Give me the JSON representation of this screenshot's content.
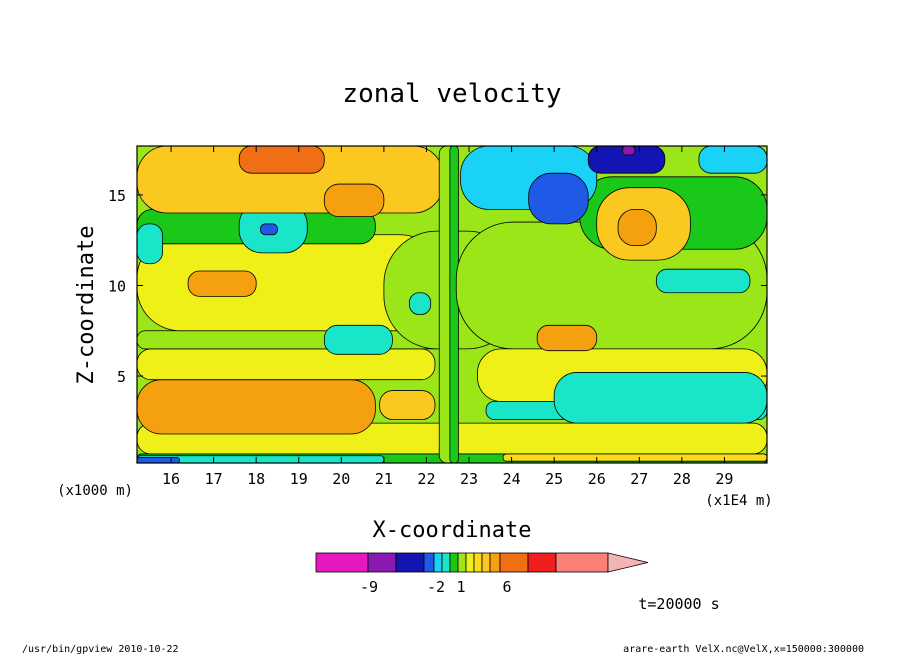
{
  "chart_data": {
    "type": "heatmap",
    "title": "zonal velocity",
    "xlabel": "X-coordinate",
    "ylabel": "Z-coordinate",
    "x_unit": "(x1E4 m)",
    "y_unit": "(x1000 m)",
    "xlim": [
      15.2,
      30.0
    ],
    "ylim": [
      0.2,
      17.7
    ],
    "x_ticks": [
      "16",
      "17",
      "18",
      "19",
      "20",
      "21",
      "22",
      "23",
      "24",
      "25",
      "26",
      "27",
      "28",
      "29"
    ],
    "y_ticks": [
      "5",
      "10",
      "15"
    ],
    "timestamp": "t=20000 s",
    "colorbar": {
      "tick_labels": [
        "-9",
        "-2",
        "1",
        "6"
      ],
      "colors": [
        "#e619c0",
        "#8a19b4",
        "#1414b4",
        "#1e5ae6",
        "#19d2f5",
        "#19e6c8",
        "#19c819",
        "#9be619",
        "#f0f019",
        "#fadc19",
        "#fac81e",
        "#f5a00f",
        "#f06e14",
        "#f01e1e",
        "#fa8078",
        "#f5b4b4"
      ]
    },
    "footer": {
      "left": "/usr/bin/gpview  2010-10-22",
      "right": "arare-earth_VelX.nc@VelX,x=150000:300000"
    },
    "levels": {
      "-9": "#e619c0",
      "-7": "#8a19b4",
      "-5": "#1414b4",
      "-3": "#1e5ae6",
      "-2": "#19d2f5",
      "-1": "#19e6c8",
      "0": "#19c819",
      "0.5": "#9be619",
      "1": "#f0f019",
      "2": "#fadc19",
      "3": "#fac81e",
      "4": "#f5a00f",
      "5": "#f06e14",
      "6": "#f01e1e"
    },
    "background_level": "0.5",
    "fields": [
      {
        "level": "1",
        "x": [
          15.2,
          30.0
        ],
        "z": [
          0.7,
          2.4
        ]
      },
      {
        "level": "0",
        "x": [
          15.2,
          30.0
        ],
        "z": [
          0.2,
          0.7
        ]
      },
      {
        "level": "-1",
        "x": [
          15.2,
          21.0
        ],
        "z": [
          0.2,
          0.6
        ]
      },
      {
        "level": "-3",
        "x": [
          15.2,
          16.2
        ],
        "z": [
          0.2,
          0.5
        ]
      },
      {
        "level": "2",
        "x": [
          23.8,
          30.0
        ],
        "z": [
          0.3,
          0.7
        ]
      },
      {
        "level": "4",
        "x": [
          15.2,
          20.8
        ],
        "z": [
          1.8,
          4.8
        ]
      },
      {
        "level": "1",
        "x": [
          15.2,
          22.2
        ],
        "z": [
          4.8,
          6.5
        ]
      },
      {
        "level": "0.5",
        "x": [
          15.2,
          22.4
        ],
        "z": [
          6.5,
          7.5
        ]
      },
      {
        "level": "1",
        "x": [
          15.2,
          22.4
        ],
        "z": [
          7.5,
          12.8
        ]
      },
      {
        "level": "0",
        "x": [
          15.2,
          20.8
        ],
        "z": [
          12.3,
          14.2
        ]
      },
      {
        "level": "-1",
        "x": [
          17.6,
          19.2
        ],
        "z": [
          11.8,
          14.6
        ]
      },
      {
        "level": "-3",
        "x": [
          18.1,
          18.5
        ],
        "z": [
          12.8,
          13.4
        ]
      },
      {
        "level": "3",
        "x": [
          15.2,
          22.4
        ],
        "z": [
          14.0,
          17.7
        ]
      },
      {
        "level": "4",
        "x": [
          19.6,
          21.0
        ],
        "z": [
          13.8,
          15.6
        ]
      },
      {
        "level": "5",
        "x": [
          17.6,
          19.6
        ],
        "z": [
          16.2,
          17.7
        ]
      },
      {
        "level": "-1",
        "x": [
          15.2,
          15.8
        ],
        "z": [
          11.2,
          13.4
        ]
      },
      {
        "level": "4",
        "x": [
          16.4,
          18.0
        ],
        "z": [
          9.4,
          10.8
        ]
      },
      {
        "level": "-1",
        "x": [
          19.6,
          21.2
        ],
        "z": [
          6.2,
          7.8
        ]
      },
      {
        "level": "3",
        "x": [
          20.9,
          22.2
        ],
        "z": [
          2.6,
          4.2
        ]
      },
      {
        "level": "0.5",
        "x": [
          21.0,
          24.2
        ],
        "z": [
          6.5,
          13.0
        ]
      },
      {
        "level": "0.5",
        "x": [
          22.3,
          22.7
        ],
        "z": [
          0.2,
          17.7
        ]
      },
      {
        "level": "0",
        "x": [
          22.55,
          22.75
        ],
        "z": [
          0.2,
          17.7
        ]
      },
      {
        "level": "-1",
        "x": [
          21.6,
          22.1
        ],
        "z": [
          8.4,
          9.6
        ]
      },
      {
        "level": "3",
        "x": [
          23.3,
          23.9
        ],
        "z": [
          8.4,
          9.7
        ]
      },
      {
        "level": "0.5",
        "x": [
          22.7,
          30.0
        ],
        "z": [
          6.5,
          13.5
        ]
      },
      {
        "level": "1",
        "x": [
          23.2,
          30.0
        ],
        "z": [
          3.6,
          6.5
        ]
      },
      {
        "level": "4",
        "x": [
          24.6,
          26.0
        ],
        "z": [
          6.4,
          7.8
        ]
      },
      {
        "level": "-1",
        "x": [
          23.4,
          30.0
        ],
        "z": [
          2.6,
          3.6
        ]
      },
      {
        "level": "-1",
        "x": [
          25.0,
          30.0
        ],
        "z": [
          2.4,
          5.2
        ]
      },
      {
        "level": "-1",
        "x": [
          27.4,
          29.6
        ],
        "z": [
          9.6,
          10.9
        ]
      },
      {
        "level": "0",
        "x": [
          25.6,
          30.0
        ],
        "z": [
          12.0,
          16.0
        ]
      },
      {
        "level": "3",
        "x": [
          26.0,
          28.2
        ],
        "z": [
          11.4,
          15.4
        ]
      },
      {
        "level": "4",
        "x": [
          26.5,
          27.4
        ],
        "z": [
          12.2,
          14.2
        ]
      },
      {
        "level": "-2",
        "x": [
          22.8,
          26.0
        ],
        "z": [
          14.2,
          17.7
        ]
      },
      {
        "level": "-3",
        "x": [
          24.4,
          25.8
        ],
        "z": [
          13.4,
          16.2
        ]
      },
      {
        "level": "-5",
        "x": [
          25.8,
          27.6
        ],
        "z": [
          16.2,
          17.7
        ]
      },
      {
        "level": "-7",
        "x": [
          26.6,
          26.9
        ],
        "z": [
          17.2,
          17.7
        ]
      },
      {
        "level": "-2",
        "x": [
          28.4,
          30.0
        ],
        "z": [
          16.2,
          17.7
        ]
      }
    ]
  }
}
